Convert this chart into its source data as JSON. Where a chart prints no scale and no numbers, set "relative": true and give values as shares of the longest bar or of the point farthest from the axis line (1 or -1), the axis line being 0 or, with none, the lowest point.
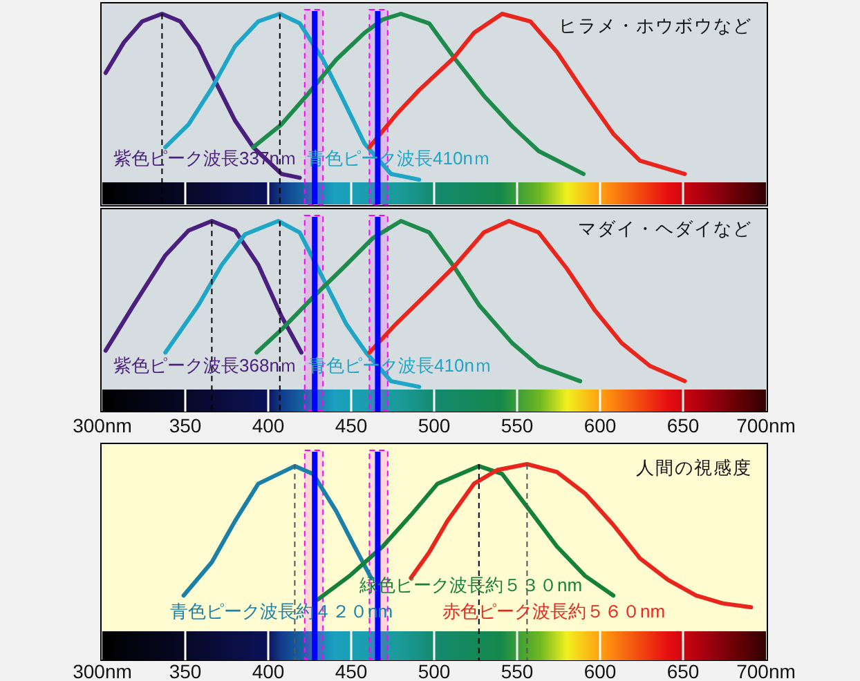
{
  "chart_data": [
    {
      "type": "line",
      "relative": true,
      "title": "ヒラメ・ホウボウなど",
      "xlim": [
        300,
        700
      ],
      "tick_labels": false,
      "xticks": [
        {
          "value": 350,
          "label": null
        },
        {
          "value": 400,
          "label": null
        },
        {
          "value": 450,
          "label": null
        },
        {
          "value": 500,
          "label": null
        },
        {
          "value": 550,
          "label": null
        },
        {
          "value": 600,
          "label": null
        },
        {
          "value": 650,
          "label": null
        }
      ],
      "annotations": [
        "紫色ピーク波長337nｍ",
        "青色ピーク波長410nｍ"
      ],
      "series": [
        {
          "color": "#4b1f7d",
          "x": [
            302,
            313,
            324,
            336,
            347,
            358,
            369,
            380,
            391,
            408,
            419
          ],
          "values": [
            0.69,
            0.85,
            0.96,
            1,
            0.96,
            0.83,
            0.63,
            0.44,
            0.3,
            0.16,
            0.14
          ]
        },
        {
          "color": "#1fa5c6",
          "x": [
            338,
            352,
            366,
            380,
            394,
            407,
            419,
            433,
            444,
            458,
            474,
            491
          ],
          "values": [
            0.3,
            0.42,
            0.61,
            0.83,
            0.96,
            1,
            0.95,
            0.76,
            0.57,
            0.32,
            0.16,
            0.13
          ]
        },
        {
          "color": "#1e8a4c",
          "x": [
            391,
            408,
            424,
            441,
            458,
            469,
            480,
            497,
            512,
            530,
            547,
            563,
            590
          ],
          "values": [
            0.3,
            0.42,
            0.58,
            0.76,
            0.9,
            0.97,
            1,
            0.95,
            0.77,
            0.57,
            0.41,
            0.28,
            0.16
          ]
        },
        {
          "color": "#e8261e",
          "x": [
            461,
            477,
            491,
            512,
            524,
            541,
            558,
            574,
            591,
            608,
            624,
            651
          ],
          "values": [
            0.3,
            0.47,
            0.6,
            0.77,
            0.9,
            1,
            0.96,
            0.8,
            0.58,
            0.37,
            0.23,
            0.16
          ]
        }
      ],
      "ref_lines": [
        {
          "axis": "x",
          "value": 336,
          "color": "#000000",
          "line_style": "dashed"
        },
        {
          "axis": "x",
          "value": 407,
          "color": "#000000",
          "line_style": "dashed"
        },
        {
          "axis": "x",
          "value": 428,
          "color": "#0000ff",
          "line_style": "solid"
        },
        {
          "axis": "x",
          "value": 466,
          "color": "#0000ff",
          "line_style": "solid"
        }
      ],
      "bands": [
        {
          "axis": "x",
          "from": 422,
          "to": 433,
          "color": "#ff00ff"
        },
        {
          "axis": "x",
          "from": 461,
          "to": 472,
          "color": "#ff00ff"
        }
      ]
    },
    {
      "type": "line",
      "relative": true,
      "title": "マダイ・ヘダイなど",
      "xlim": [
        300,
        700
      ],
      "tick_labels": "x",
      "xticks": [
        {
          "value": 300,
          "label": "300nm"
        },
        350,
        400,
        450,
        500,
        550,
        600,
        650,
        {
          "value": 700,
          "label": "700nm"
        }
      ],
      "annotations": [
        "紫色ピーク波長368nｍ",
        "青色ピーク波長410nｍ"
      ],
      "series": [
        {
          "color": "#4b1f7d",
          "x": [
            302,
            319,
            338,
            352,
            366,
            380,
            394,
            408,
            420
          ],
          "values": [
            0.32,
            0.56,
            0.82,
            0.95,
            1,
            0.95,
            0.77,
            0.5,
            0.31
          ]
        },
        {
          "color": "#1fa5c6",
          "x": [
            338,
            358,
            372,
            386,
            406,
            419,
            433,
            447,
            459,
            474,
            491
          ],
          "values": [
            0.31,
            0.56,
            0.77,
            0.93,
            1,
            0.94,
            0.7,
            0.46,
            0.31,
            0.16,
            0.13
          ]
        },
        {
          "color": "#1e8a4c",
          "x": [
            393,
            408,
            427,
            447,
            463,
            480,
            497,
            512,
            527,
            547,
            563,
            588
          ],
          "values": [
            0.31,
            0.43,
            0.6,
            0.77,
            0.91,
            1,
            0.94,
            0.76,
            0.56,
            0.36,
            0.24,
            0.16
          ]
        },
        {
          "color": "#e8261e",
          "x": [
            461,
            477,
            497,
            512,
            530,
            545,
            563,
            580,
            597,
            613,
            630,
            651
          ],
          "values": [
            0.31,
            0.46,
            0.63,
            0.76,
            0.94,
            1,
            0.94,
            0.75,
            0.53,
            0.36,
            0.24,
            0.16
          ]
        }
      ],
      "ref_lines": [
        {
          "axis": "x",
          "value": 366,
          "color": "#000000",
          "line_style": "dashed"
        },
        {
          "axis": "x",
          "value": 407,
          "color": "#000000",
          "line_style": "dashed"
        },
        {
          "axis": "x",
          "value": 428,
          "color": "#0000ff",
          "line_style": "solid"
        },
        {
          "axis": "x",
          "value": 466,
          "color": "#0000ff",
          "line_style": "solid"
        }
      ],
      "bands": [
        {
          "axis": "x",
          "from": 422,
          "to": 433,
          "color": "#ff00ff"
        },
        {
          "axis": "x",
          "from": 461,
          "to": 472,
          "color": "#ff00ff"
        }
      ]
    },
    {
      "type": "line",
      "relative": true,
      "title": "人間の視感度",
      "xlim": [
        300,
        700
      ],
      "tick_labels": "x",
      "xticks": [
        {
          "value": 300,
          "label": "300nm"
        },
        350,
        400,
        450,
        500,
        550,
        600,
        650,
        {
          "value": 700,
          "label": "700nm"
        }
      ],
      "annotations": [
        "緑色ピーク波長約５３０nm",
        "青色ピーク波長約４２０nm",
        "赤色ピーク波長約５６０nm"
      ],
      "series": [
        {
          "color": "#1a80a8",
          "x": [
            349,
            366,
            380,
            394,
            416,
            427,
            441,
            452,
            462
          ],
          "values": [
            0.33,
            0.5,
            0.71,
            0.9,
            0.99,
            0.95,
            0.76,
            0.58,
            0.42
          ]
        },
        {
          "color": "#15803a",
          "x": [
            430,
            449,
            469,
            486,
            502,
            527,
            541,
            558,
            574,
            591,
            608
          ],
          "values": [
            0.31,
            0.43,
            0.58,
            0.74,
            0.9,
            0.99,
            0.95,
            0.76,
            0.58,
            0.43,
            0.33
          ]
        },
        {
          "color": "#e8261e",
          "x": [
            486,
            497,
            508,
            524,
            538,
            556,
            574,
            591,
            608,
            624,
            641,
            658,
            674,
            691
          ],
          "values": [
            0.42,
            0.55,
            0.71,
            0.9,
            0.97,
            1,
            0.96,
            0.85,
            0.69,
            0.52,
            0.41,
            0.33,
            0.29,
            0.27
          ]
        }
      ],
      "ref_lines": [
        {
          "axis": "x",
          "value": 416,
          "color": "#555555",
          "line_style": "dashed"
        },
        {
          "axis": "x",
          "value": 527,
          "color": "#000000",
          "line_style": "dashed"
        },
        {
          "axis": "x",
          "value": 556,
          "color": "#555555",
          "line_style": "dashed"
        },
        {
          "axis": "x",
          "value": 428,
          "color": "#0000ff",
          "line_style": "solid"
        },
        {
          "axis": "x",
          "value": 466,
          "color": "#0000ff",
          "line_style": "solid"
        }
      ],
      "bands": [
        {
          "axis": "x",
          "from": 422,
          "to": 433,
          "color": "#ff00ff"
        },
        {
          "axis": "x",
          "from": 461,
          "to": 472,
          "color": "#ff00ff"
        }
      ]
    }
  ]
}
